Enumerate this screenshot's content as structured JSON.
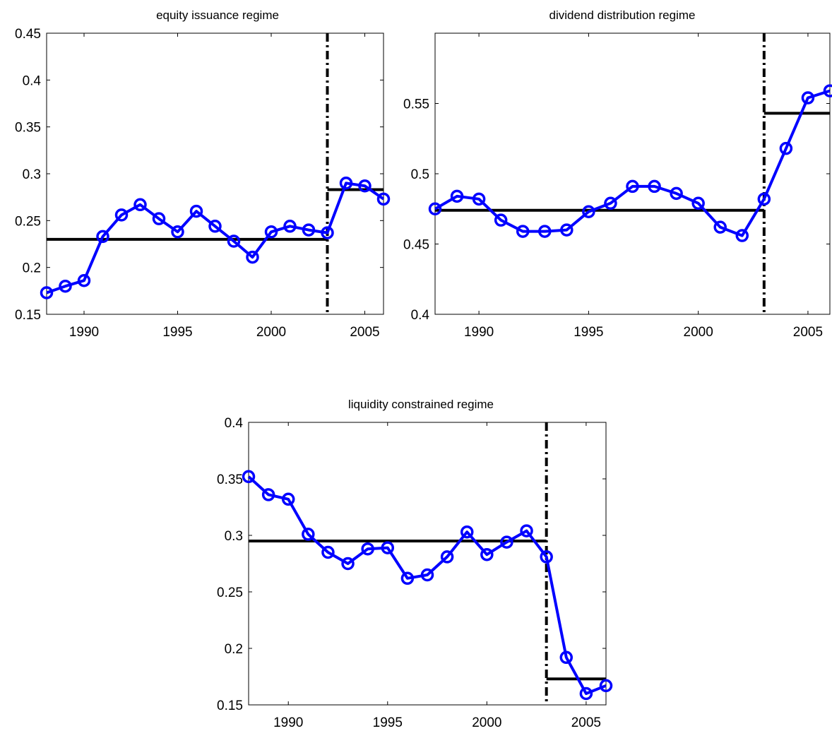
{
  "chart_data": [
    {
      "type": "line",
      "title": "equity issuance regime",
      "xlabel": "",
      "ylabel": "",
      "xlim": [
        1988,
        2006
      ],
      "ylim": [
        0.15,
        0.45
      ],
      "xticks": [
        1990,
        1995,
        2000,
        2005
      ],
      "xtick_labels": [
        "1990",
        "1995",
        "2000",
        "2005"
      ],
      "yticks": [
        0.15,
        0.2,
        0.25,
        0.3,
        0.35,
        0.4,
        0.45
      ],
      "ytick_labels": [
        "0.15",
        "0.2",
        "0.25",
        "0.3",
        "0.35",
        "0.4",
        "0.45"
      ],
      "grid": false,
      "series": [
        {
          "color": "#0000ff",
          "marker": "circle",
          "x": [
            1988,
            1989,
            1990,
            1991,
            1992,
            1993,
            1994,
            1995,
            1996,
            1997,
            1998,
            1999,
            2000,
            2001,
            2002,
            2003,
            2004,
            2005,
            2006
          ],
          "values": [
            0.173,
            0.18,
            0.186,
            0.233,
            0.256,
            0.267,
            0.252,
            0.238,
            0.26,
            0.244,
            0.228,
            0.211,
            0.238,
            0.244,
            0.24,
            0.237,
            0.29,
            0.287,
            0.273
          ]
        }
      ],
      "regime_means": [
        {
          "x_start": 1988,
          "x_end": 2003,
          "value": 0.23
        },
        {
          "x_start": 2003,
          "x_end": 2006,
          "value": 0.283
        }
      ],
      "break_year": 2003
    },
    {
      "type": "line",
      "title": "dividend distribution regime",
      "xlabel": "",
      "ylabel": "",
      "xlim": [
        1988,
        2006
      ],
      "ylim": [
        0.4,
        0.6
      ],
      "xticks": [
        1990,
        1995,
        2000,
        2005
      ],
      "xtick_labels": [
        "1990",
        "1995",
        "2000",
        "2005"
      ],
      "yticks": [
        0.4,
        0.45,
        0.5,
        0.55
      ],
      "ytick_labels": [
        "0.4",
        "0.45",
        "0.5",
        "0.55"
      ],
      "grid": false,
      "series": [
        {
          "color": "#0000ff",
          "marker": "circle",
          "x": [
            1988,
            1989,
            1990,
            1991,
            1992,
            1993,
            1994,
            1995,
            1996,
            1997,
            1998,
            1999,
            2000,
            2001,
            2002,
            2003,
            2004,
            2005,
            2006
          ],
          "values": [
            0.475,
            0.484,
            0.482,
            0.467,
            0.459,
            0.459,
            0.46,
            0.473,
            0.479,
            0.491,
            0.491,
            0.486,
            0.479,
            0.462,
            0.456,
            0.482,
            0.518,
            0.554,
            0.559
          ]
        }
      ],
      "regime_means": [
        {
          "x_start": 1988,
          "x_end": 2003,
          "value": 0.474
        },
        {
          "x_start": 2003,
          "x_end": 2006,
          "value": 0.543
        }
      ],
      "break_year": 2003
    },
    {
      "type": "line",
      "title": "liquidity constrained regime",
      "xlabel": "",
      "ylabel": "",
      "xlim": [
        1988,
        2006
      ],
      "ylim": [
        0.15,
        0.4
      ],
      "xticks": [
        1990,
        1995,
        2000,
        2005
      ],
      "xtick_labels": [
        "1990",
        "1995",
        "2000",
        "2005"
      ],
      "yticks": [
        0.15,
        0.2,
        0.25,
        0.3,
        0.35,
        0.4
      ],
      "ytick_labels": [
        "0.15",
        "0.2",
        "0.25",
        "0.3",
        "0.35",
        "0.4"
      ],
      "grid": false,
      "series": [
        {
          "color": "#0000ff",
          "marker": "circle",
          "x": [
            1988,
            1989,
            1990,
            1991,
            1992,
            1993,
            1994,
            1995,
            1996,
            1997,
            1998,
            1999,
            2000,
            2001,
            2002,
            2003,
            2004,
            2005,
            2006
          ],
          "values": [
            0.352,
            0.336,
            0.332,
            0.301,
            0.285,
            0.275,
            0.288,
            0.289,
            0.262,
            0.265,
            0.281,
            0.303,
            0.283,
            0.294,
            0.304,
            0.281,
            0.192,
            0.16,
            0.167
          ]
        }
      ],
      "regime_means": [
        {
          "x_start": 1988,
          "x_end": 2003,
          "value": 0.295
        },
        {
          "x_start": 2003,
          "x_end": 2006,
          "value": 0.173
        }
      ],
      "break_year": 2003
    }
  ]
}
